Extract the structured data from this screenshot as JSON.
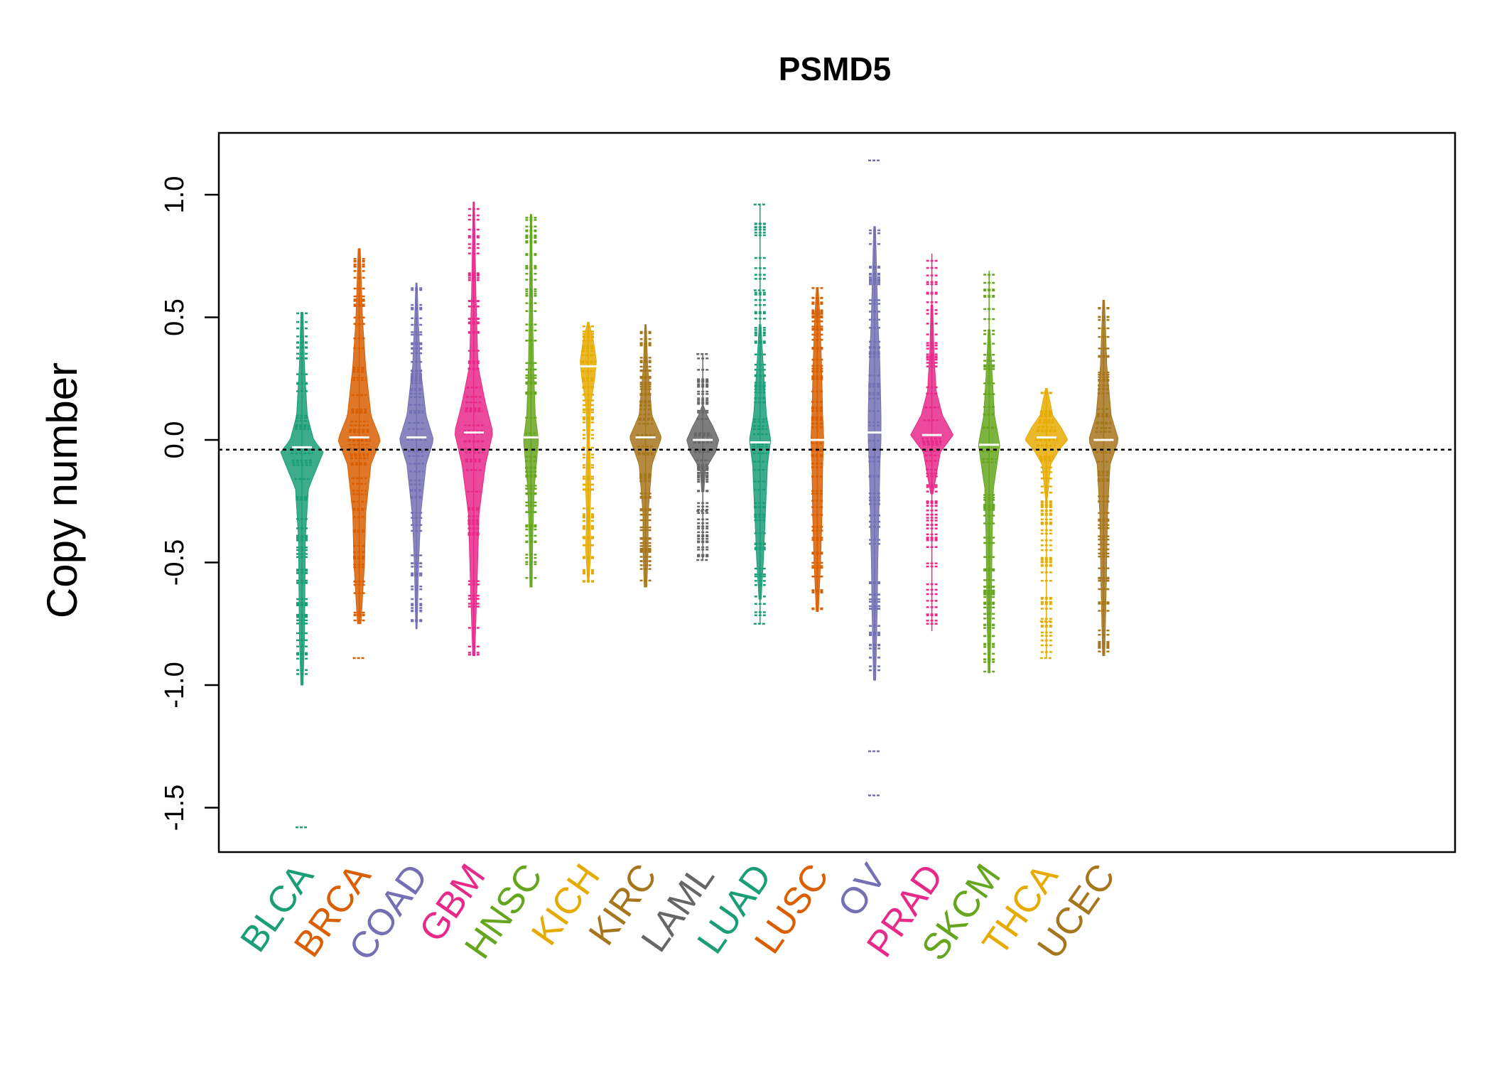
{
  "chart_data": {
    "type": "beanplot",
    "title": "PSMD5",
    "xlabel": "",
    "ylabel": "Copy number",
    "ylim": [
      -1.7,
      1.25
    ],
    "y_ticks": [
      "1.0",
      "0.5",
      "0.0",
      "-0.5",
      "-1.0",
      "-1.5"
    ],
    "y_tick_values": [
      1.0,
      0.5,
      0.0,
      -0.5,
      -1.0,
      -1.5
    ],
    "reference_line": {
      "y": -0.04,
      "style": "dotted"
    },
    "grid": false,
    "categories": [
      "BLCA",
      "BRCA",
      "COAD",
      "GBM",
      "HNSC",
      "KICH",
      "KIRC",
      "LAML",
      "LUAD",
      "LUSC",
      "OV",
      "PRAD",
      "SKCM",
      "THCA",
      "UCEC"
    ],
    "series": [
      {
        "category": "BLCA",
        "color": "#1B9E77",
        "min": -1.0,
        "max": 0.52,
        "median": -0.03,
        "outliers": [
          -1.58
        ],
        "density": [
          [
            -1.0,
            0.05
          ],
          [
            -0.8,
            0.12
          ],
          [
            -0.6,
            0.14
          ],
          [
            -0.4,
            0.16
          ],
          [
            -0.2,
            0.3
          ],
          [
            -0.05,
            1.0
          ],
          [
            0.0,
            0.55
          ],
          [
            0.1,
            0.25
          ],
          [
            0.3,
            0.12
          ],
          [
            0.52,
            0.05
          ]
        ]
      },
      {
        "category": "BRCA",
        "color": "#D95F02",
        "min": -0.75,
        "max": 0.78,
        "median": 0.01,
        "outliers": [
          -0.89
        ],
        "density": [
          [
            -0.75,
            0.08
          ],
          [
            -0.5,
            0.25
          ],
          [
            -0.3,
            0.3
          ],
          [
            -0.1,
            0.55
          ],
          [
            0.0,
            1.0
          ],
          [
            0.1,
            0.55
          ],
          [
            0.3,
            0.3
          ],
          [
            0.5,
            0.15
          ],
          [
            0.78,
            0.05
          ]
        ]
      },
      {
        "category": "COAD",
        "color": "#7570B3",
        "min": -0.77,
        "max": 0.64,
        "median": 0.01,
        "outliers": [],
        "density": [
          [
            -0.77,
            0.03
          ],
          [
            -0.5,
            0.1
          ],
          [
            -0.3,
            0.2
          ],
          [
            -0.1,
            0.45
          ],
          [
            0.0,
            0.8
          ],
          [
            0.1,
            0.45
          ],
          [
            0.3,
            0.18
          ],
          [
            0.5,
            0.08
          ],
          [
            0.64,
            0.03
          ]
        ]
      },
      {
        "category": "GBM",
        "color": "#E7298A",
        "min": -0.88,
        "max": 0.97,
        "median": 0.03,
        "outliers": [],
        "density": [
          [
            -0.88,
            0.05
          ],
          [
            -0.6,
            0.15
          ],
          [
            -0.3,
            0.25
          ],
          [
            -0.1,
            0.55
          ],
          [
            0.03,
            0.9
          ],
          [
            0.15,
            0.55
          ],
          [
            0.3,
            0.2
          ],
          [
            0.6,
            0.1
          ],
          [
            0.97,
            0.03
          ]
        ]
      },
      {
        "category": "HNSC",
        "color": "#66A61E",
        "min": -0.6,
        "max": 0.92,
        "median": 0.01,
        "outliers": [],
        "density": [
          [
            -0.6,
            0.05
          ],
          [
            -0.4,
            0.08
          ],
          [
            -0.2,
            0.15
          ],
          [
            0.0,
            0.35
          ],
          [
            0.1,
            0.2
          ],
          [
            0.3,
            0.12
          ],
          [
            0.5,
            0.08
          ],
          [
            0.92,
            0.03
          ]
        ]
      },
      {
        "category": "KICH",
        "color": "#E6AB02",
        "min": -0.58,
        "max": 0.48,
        "median": 0.3,
        "outliers": [],
        "density": [
          [
            -0.58,
            0.03
          ],
          [
            -0.45,
            0.12
          ],
          [
            -0.3,
            0.08
          ],
          [
            -0.2,
            0.12
          ],
          [
            0.0,
            0.06
          ],
          [
            0.15,
            0.12
          ],
          [
            0.25,
            0.3
          ],
          [
            0.32,
            0.38
          ],
          [
            0.4,
            0.25
          ],
          [
            0.48,
            0.03
          ]
        ]
      },
      {
        "category": "KIRC",
        "color": "#A6761D",
        "min": -0.6,
        "max": 0.47,
        "median": 0.01,
        "outliers": [],
        "density": [
          [
            -0.6,
            0.06
          ],
          [
            -0.45,
            0.12
          ],
          [
            -0.3,
            0.12
          ],
          [
            -0.1,
            0.3
          ],
          [
            0.01,
            0.75
          ],
          [
            0.1,
            0.3
          ],
          [
            0.3,
            0.1
          ],
          [
            0.47,
            0.03
          ]
        ]
      },
      {
        "category": "LAML",
        "color": "#666666",
        "min": -0.49,
        "max": 0.35,
        "median": 0.0,
        "outliers": [
          0.35,
          -0.29,
          -0.49
        ],
        "density": [
          [
            -0.21,
            0.05
          ],
          [
            -0.12,
            0.12
          ],
          [
            -0.05,
            0.6
          ],
          [
            0.0,
            0.75
          ],
          [
            0.05,
            0.5
          ],
          [
            0.1,
            0.2
          ],
          [
            0.14,
            0.03
          ]
        ]
      },
      {
        "category": "LUAD",
        "color": "#1B9E77",
        "min": -0.75,
        "max": 0.96,
        "median": -0.01,
        "outliers": [
          0.96,
          0.61,
          -0.75
        ],
        "density": [
          [
            -0.65,
            0.05
          ],
          [
            -0.5,
            0.15
          ],
          [
            -0.3,
            0.25
          ],
          [
            -0.1,
            0.35
          ],
          [
            0.0,
            0.5
          ],
          [
            0.1,
            0.3
          ],
          [
            0.3,
            0.15
          ],
          [
            0.47,
            0.04
          ]
        ]
      },
      {
        "category": "LUSC",
        "color": "#D95F02",
        "min": -0.7,
        "max": 0.62,
        "median": 0.0,
        "outliers": [],
        "density": [
          [
            -0.7,
            0.05
          ],
          [
            -0.5,
            0.15
          ],
          [
            -0.3,
            0.22
          ],
          [
            -0.1,
            0.25
          ],
          [
            0.0,
            0.3
          ],
          [
            0.1,
            0.25
          ],
          [
            0.3,
            0.2
          ],
          [
            0.5,
            0.12
          ],
          [
            0.62,
            0.04
          ]
        ]
      },
      {
        "category": "OV",
        "color": "#7570B3",
        "min": -0.98,
        "max": 0.87,
        "median": 0.03,
        "outliers": [
          1.14,
          -1.27,
          -1.45
        ],
        "density": [
          [
            -0.98,
            0.05
          ],
          [
            -0.7,
            0.12
          ],
          [
            -0.5,
            0.15
          ],
          [
            -0.3,
            0.2
          ],
          [
            -0.1,
            0.25
          ],
          [
            0.0,
            0.3
          ],
          [
            0.1,
            0.3
          ],
          [
            0.3,
            0.25
          ],
          [
            0.5,
            0.15
          ],
          [
            0.87,
            0.04
          ]
        ]
      },
      {
        "category": "PRAD",
        "color": "#E7298A",
        "min": -0.78,
        "max": 0.76,
        "median": 0.02,
        "outliers": [],
        "density": [
          [
            -0.22,
            0.05
          ],
          [
            -0.05,
            0.4
          ],
          [
            0.02,
            1.0
          ],
          [
            0.1,
            0.5
          ],
          [
            0.2,
            0.2
          ],
          [
            0.35,
            0.1
          ],
          [
            0.55,
            0.04
          ]
        ]
      },
      {
        "category": "SKCM",
        "color": "#66A61E",
        "min": -0.95,
        "max": 0.69,
        "median": -0.02,
        "outliers": [],
        "density": [
          [
            -0.95,
            0.04
          ],
          [
            -0.7,
            0.1
          ],
          [
            -0.4,
            0.14
          ],
          [
            -0.2,
            0.2
          ],
          [
            -0.02,
            0.5
          ],
          [
            0.1,
            0.25
          ],
          [
            0.3,
            0.12
          ],
          [
            0.45,
            0.04
          ]
        ]
      },
      {
        "category": "THCA",
        "color": "#E6AB02",
        "min": -0.89,
        "max": 0.21,
        "median": 0.01,
        "outliers": [
          -0.74,
          -0.89
        ],
        "density": [
          [
            -0.25,
            0.03
          ],
          [
            -0.1,
            0.2
          ],
          [
            -0.04,
            0.6
          ],
          [
            0.0,
            1.0
          ],
          [
            0.05,
            0.7
          ],
          [
            0.1,
            0.3
          ],
          [
            0.21,
            0.04
          ]
        ]
      },
      {
        "category": "UCEC",
        "color": "#A6761D",
        "min": -0.88,
        "max": 0.57,
        "median": 0.0,
        "outliers": [],
        "density": [
          [
            -0.88,
            0.05
          ],
          [
            -0.6,
            0.12
          ],
          [
            -0.3,
            0.18
          ],
          [
            -0.1,
            0.3
          ],
          [
            0.0,
            0.7
          ],
          [
            0.1,
            0.35
          ],
          [
            0.3,
            0.15
          ],
          [
            0.57,
            0.04
          ]
        ]
      }
    ]
  }
}
